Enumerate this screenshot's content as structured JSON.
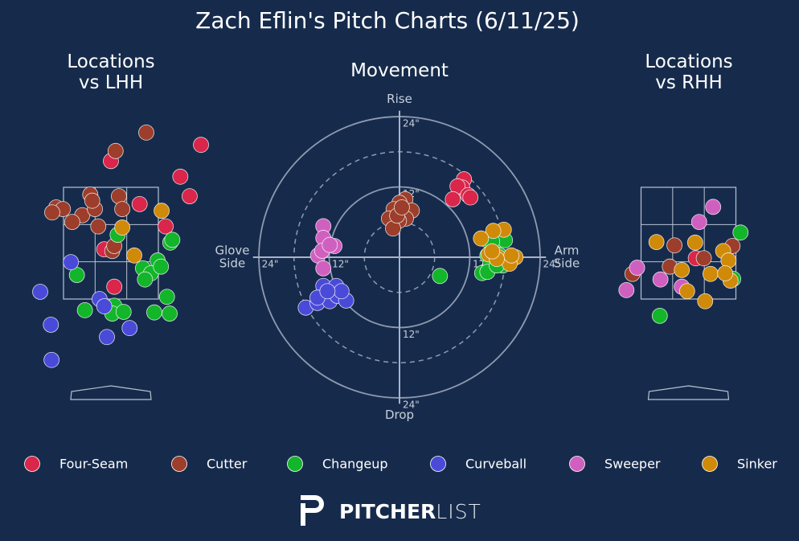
{
  "title": "Zach Eflin's Pitch Charts (6/11/25)",
  "pitch_types": [
    {
      "name": "Four-Seam",
      "color": "#d9264a"
    },
    {
      "name": "Cutter",
      "color": "#9c3e2b"
    },
    {
      "name": "Changeup",
      "color": "#13b52a"
    },
    {
      "name": "Curveball",
      "color": "#4a4ad9"
    },
    {
      "name": "Sweeper",
      "color": "#d060c0"
    },
    {
      "name": "Sinker",
      "color": "#d08a0a"
    }
  ],
  "logo": {
    "bold": "PITCHER",
    "light": "LIST"
  },
  "chart_data": [
    {
      "type": "scatter",
      "title": "Locations\nvs LHH",
      "strike_zone": true,
      "xlim": [
        -1.5,
        1.5
      ],
      "ylim": [
        0,
        5
      ],
      "series": [
        {
          "x": [
            0,
            1.04,
            1.18,
            0.43,
            0.82,
            -0.1,
            0.05,
            1.35
          ],
          "y": [
            3.97,
            3.69,
            3.34,
            3.2,
            2.8,
            2.39,
            1.72,
            4.26
          ]
        },
        {
          "x": [
            0.53,
            0.07,
            -0.31,
            0.12,
            -0.82,
            -0.72,
            -0.88,
            -0.43,
            -0.24,
            0.17,
            -0.58,
            -0.19,
            -0.28,
            0.02,
            0.05
          ],
          "y": [
            4.48,
            4.15,
            3.37,
            3.34,
            3.14,
            3.11,
            3.05,
            3.0,
            3.11,
            3.11,
            2.88,
            2.8,
            3.26,
            2.36,
            2.45
          ]
        },
        {
          "x": [
            0.1,
            0.89,
            0.92,
            0.48,
            0.7,
            0.6,
            0.75,
            0.51,
            -0.51,
            -0.39,
            0.05,
            0.02,
            0.19,
            0.65,
            0.88,
            0.84
          ],
          "y": [
            2.65,
            2.51,
            2.56,
            2.05,
            2.19,
            1.96,
            2.08,
            1.85,
            1.93,
            1.3,
            1.38,
            1.24,
            1.27,
            1.26,
            1.24,
            1.54
          ]
        },
        {
          "x": [
            -0.6,
            -1.06,
            -0.17,
            -0.1,
            -0.9,
            -0.06,
            0.28,
            -0.89
          ],
          "y": [
            2.16,
            1.63,
            1.5,
            1.37,
            1.04,
            0.82,
            0.98,
            0.41
          ]
        },
        {
          "x": [],
          "y": []
        },
        {
          "x": [
            0.76,
            0.17,
            0.35
          ],
          "y": [
            3.08,
            2.78,
            2.28
          ]
        }
      ]
    },
    {
      "type": "scatter",
      "title": "Movement",
      "polar_grid": true,
      "top_label": "Rise",
      "bottom_label": "Drop",
      "left_label": "Glove\nSide",
      "right_label": "Arm\nSide",
      "xlim": [
        -25,
        25
      ],
      "ylim": [
        -25,
        25
      ],
      "xticks": [
        {
          "value": -24,
          "label": "24\""
        },
        {
          "value": -12,
          "label": "12\""
        },
        {
          "value": 12,
          "label": "12\""
        },
        {
          "value": 24,
          "label": "24\""
        }
      ],
      "yticks": [
        {
          "value": -24,
          "label": "24\""
        },
        {
          "value": -12,
          "label": "12\""
        },
        {
          "value": 12,
          "label": "12\""
        },
        {
          "value": 24,
          "label": "24\""
        }
      ],
      "series": [
        {
          "x": [
            11.0,
            10.7,
            9.9,
            11.7,
            12.1,
            9.1
          ],
          "y": [
            13.3,
            11.9,
            12.1,
            10.6,
            10.2,
            9.9
          ]
        },
        {
          "x": [
            1.0,
            0,
            -1.0,
            2.1,
            1.1,
            -0.1,
            -1.8,
            -1.1,
            -0.4,
            0.4
          ],
          "y": [
            9.9,
            9.3,
            8.2,
            7.96,
            6.6,
            6.2,
            6.6,
            4.9,
            7.1,
            8.5
          ]
        },
        {
          "x": [
            6.9,
            14.8,
            16.9,
            18.0,
            15.8,
            15.0,
            17.1,
            15.5,
            17.6,
            14.1,
            15.0,
            16.6
          ],
          "y": [
            -3.2,
            3.0,
            3.0,
            2.9,
            2.7,
            0.3,
            0.3,
            -1.1,
            -1.4,
            -2.7,
            -2.5,
            -1.4
          ]
        },
        {
          "x": [
            -16.0,
            -14.0,
            -11.9,
            -10.6,
            -9.1,
            -13.0,
            -10.8,
            -14.0,
            -9.9,
            -12.3
          ],
          "y": [
            -8.6,
            -7.8,
            -7.5,
            -6.6,
            -7.4,
            -4.9,
            -4.9,
            -6.9,
            -5.8,
            -5.8
          ]
        },
        {
          "x": [
            -13.0,
            -13.0,
            -11.1,
            -13.9,
            -13.0,
            -13.2,
            -11.9
          ],
          "y": [
            5.3,
            3.3,
            1.9,
            0.3,
            -1.9,
            1.1,
            2.1
          ]
        },
        {
          "x": [
            17.8,
            16.0,
            13.9,
            15.2,
            16.9,
            19.8,
            18.8,
            19.1,
            16.6,
            15.8
          ],
          "y": [
            4.7,
            4.5,
            3.2,
            0.5,
            0,
            0,
            -1.1,
            0.3,
            -0.3,
            1.0
          ]
        }
      ]
    },
    {
      "type": "scatter",
      "title": "Locations\nvs RHH",
      "strike_zone": true,
      "xlim": [
        -1.5,
        1.5
      ],
      "ylim": [
        0,
        5
      ],
      "series": [
        {
          "x": [
            0.11
          ],
          "y": [
            2.23
          ]
        },
        {
          "x": [
            -0.21,
            -0.84,
            -0.28,
            0.23,
            0.66
          ],
          "y": [
            2.46,
            1.95,
            2.08,
            2.23,
            2.45
          ]
        },
        {
          "x": [
            0.78,
            -0.43,
            0.67
          ],
          "y": [
            2.69,
            1.2,
            1.86
          ]
        },
        {
          "x": [],
          "y": []
        },
        {
          "x": [
            0.37,
            0.16,
            -0.77,
            -0.93,
            -0.42,
            -0.1
          ],
          "y": [
            3.15,
            2.88,
            2.06,
            1.66,
            1.85,
            1.72
          ]
        },
        {
          "x": [
            -0.48,
            0.1,
            -0.1,
            -0.02,
            0.25,
            0.33,
            0.52,
            0.6,
            0.63,
            0.55
          ],
          "y": [
            2.52,
            2.51,
            2.02,
            1.64,
            1.46,
            1.95,
            2.36,
            2.19,
            1.83,
            1.96
          ]
        }
      ]
    }
  ]
}
